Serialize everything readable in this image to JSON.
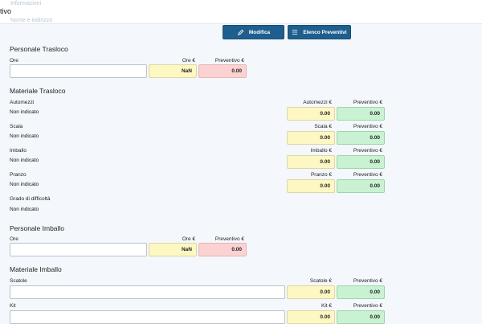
{
  "header": {
    "title_fragment": "tivo",
    "ghost_line_1": "Informazioni",
    "ghost_line_2": "Nome e indirizzo",
    "modifica_label": "Modifica",
    "elenco_label": "Elenco Preventivi"
  },
  "personale_trasloco": {
    "title": "Personale Trasloco",
    "ore_label": "Ore",
    "ore_euro_label": "Ore €",
    "preventivo_label": "Preventivo €",
    "ore_euro_value": "NaN",
    "preventivo_value": "0.00"
  },
  "materiale_trasloco": {
    "title": "Materiale Trasloco",
    "items": [
      {
        "label": "Automezzi",
        "status": "Non indicato",
        "euro_label": "Automezzi €",
        "preventivo_label": "Preventivo €",
        "euro_value": "0.00",
        "preventivo_value": "0.00"
      },
      {
        "label": "Scala",
        "status": "Non indicato",
        "euro_label": "Scala €",
        "preventivo_label": "Preventivo €",
        "euro_value": "0.00",
        "preventivo_value": "0.00"
      },
      {
        "label": "Imballo",
        "status": "Non indicato",
        "euro_label": "Imballo €",
        "preventivo_label": "Preventivo €",
        "euro_value": "0.00",
        "preventivo_value": "0.00"
      },
      {
        "label": "Pranzo",
        "status": "Non indicato",
        "euro_label": "Pranzo €",
        "preventivo_label": "Preventivo €",
        "euro_value": "0.00",
        "preventivo_value": "0.00"
      }
    ],
    "grado_label": "Grado di difficoltà",
    "grado_status": "Non indicato"
  },
  "personale_imballo": {
    "title": "Personale Imballo",
    "ore_label": "Ore",
    "ore_euro_label": "Ore €",
    "preventivo_label": "Preventivo €",
    "ore_euro_value": "NaN",
    "preventivo_value": "0.00"
  },
  "materiale_imballo": {
    "title": "Materiale Imballo",
    "items": [
      {
        "label": "Scatole",
        "euro_label": "Scatole €",
        "preventivo_label": "Preventivo €",
        "euro_value": "0.00",
        "preventivo_value": "0.00"
      },
      {
        "label": "Kit",
        "euro_label": "Kit €",
        "preventivo_label": "Preventivo €",
        "euro_value": "0.00",
        "preventivo_value": "0.00"
      }
    ]
  }
}
